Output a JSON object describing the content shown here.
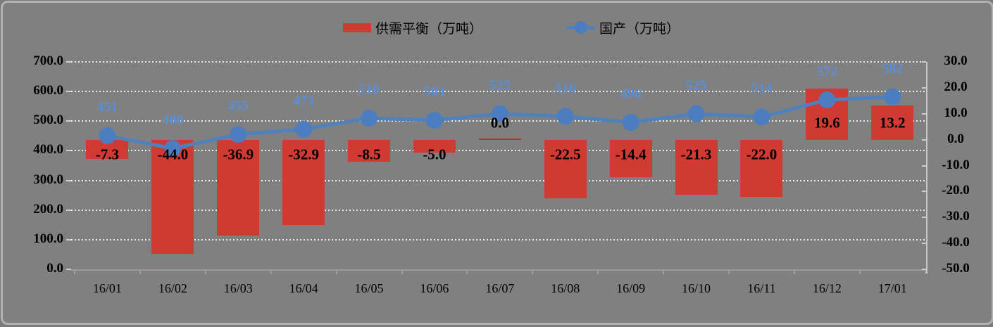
{
  "colors": {
    "background": "#808080",
    "card_border": "#b2b2b2",
    "bar": "#d03a33",
    "zero_bar_line": "#b53531",
    "line": "#4f81bd",
    "marker": "#4c7dc0",
    "line_label": "#5a8ed8",
    "bar_label": "#000000",
    "axis_text": "#000000",
    "gridline": "#ececec",
    "axis_line": "#9d9d9d"
  },
  "chart_data": {
    "type": "combo-bar-line",
    "title": "",
    "categories": [
      "16/01",
      "16/02",
      "16/03",
      "16/04",
      "16/05",
      "16/06",
      "16/07",
      "16/08",
      "16/09",
      "16/10",
      "16/11",
      "16/12",
      "17/01"
    ],
    "series": [
      {
        "name": "供需平衡（万吨）",
        "type": "bar",
        "axis": "right",
        "color": "#d03a33",
        "values": [
          -7.3,
          -44.0,
          -36.9,
          -32.9,
          -8.5,
          -5.0,
          0.0,
          -22.5,
          -14.4,
          -21.3,
          -22.0,
          19.6,
          13.2
        ],
        "labels": [
          "-7.3",
          "-44.0",
          "-36.9",
          "-32.9",
          "-8.5",
          "-5.0",
          "0.0",
          "-22.5",
          "-14.4",
          "-21.3",
          "-22.0",
          "19.6",
          "13.2"
        ]
      },
      {
        "name": "国产（万吨）",
        "type": "line",
        "axis": "left",
        "color": "#4f81bd",
        "marker": "circle",
        "values": [
          451,
          408,
          455,
          473,
          510,
          503,
          525,
          516,
          496,
          525,
          514,
          572,
          582
        ],
        "labels": [
          "451",
          "408",
          "455",
          "473",
          "510",
          "503",
          "525",
          "516",
          "496",
          "525",
          "514",
          "572",
          "582"
        ]
      }
    ],
    "left_axis": {
      "min": 0,
      "max": 700,
      "step": 100,
      "tick_labels": [
        "700.0",
        "600.0",
        "500.0",
        "400.0",
        "300.0",
        "200.0",
        "100.0",
        "0.0"
      ]
    },
    "right_axis": {
      "min": -50,
      "max": 30,
      "step": 10,
      "tick_labels": [
        "30.0",
        "20.0",
        "10.0",
        "0.0",
        "-10.0",
        "-20.0",
        "-30.0",
        "-40.0",
        "-50.0"
      ]
    },
    "grid": {
      "horizontal": true,
      "style": "dotted",
      "color": "#ececec"
    },
    "legend_position": "top"
  }
}
